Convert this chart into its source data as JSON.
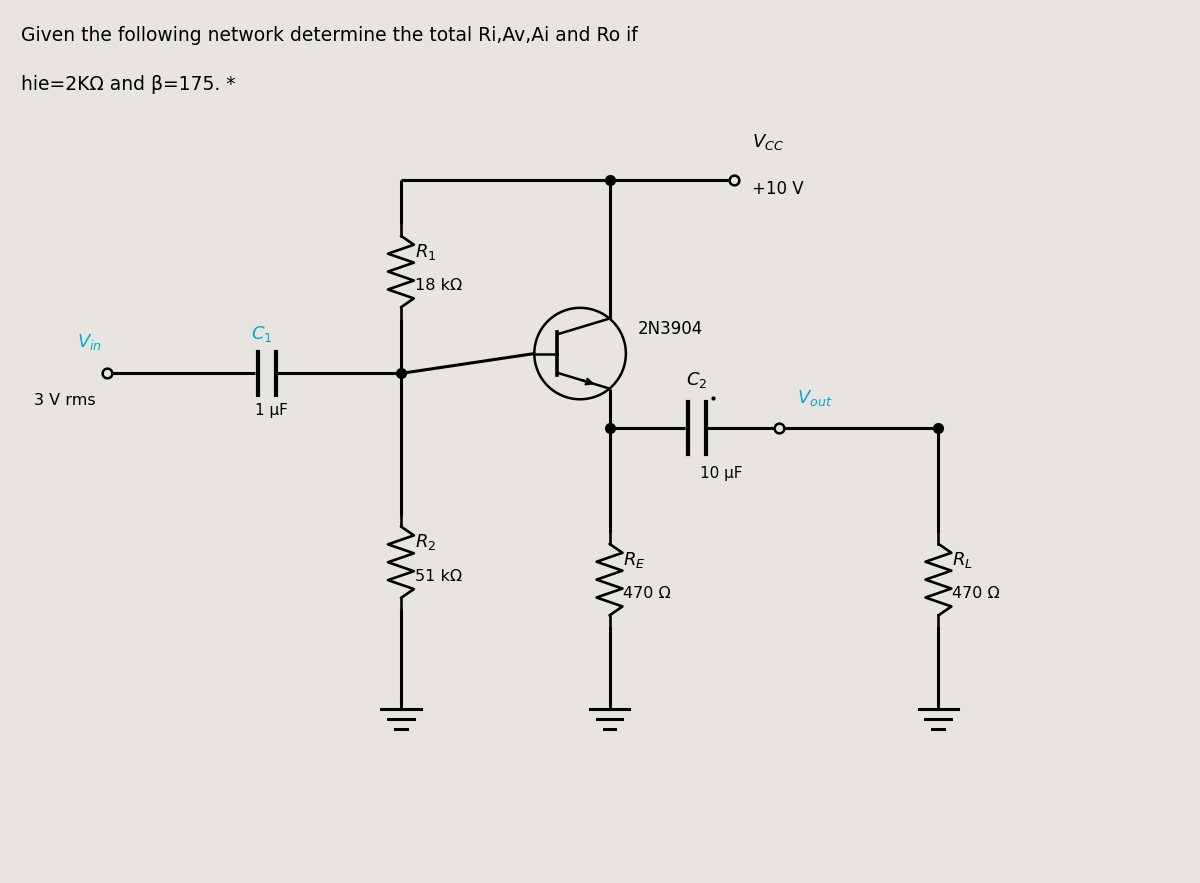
{
  "title_line1": "Given the following network determine the total Ri,Av,Ai and Ro if",
  "title_line2": "hie=2KΩ and β=175. *",
  "bg_color": "#e8e5e0",
  "line_color": "#000000",
  "accent_color": "#00aacc",
  "vcc_label": "V_{CC}",
  "vcc_value": "+10 V",
  "r1_label": "R_1",
  "r1_value": "18 kΩ",
  "r2_label": "R_2",
  "r2_value": "51 kΩ",
  "re_label": "R_E",
  "re_value": "470 Ω",
  "rl_label": "R_L",
  "rl_value": "470 Ω",
  "c1_label": "C_1",
  "c1_value": "1 μF",
  "c2_label": "C_2",
  "c2_value": "10 μF",
  "vin_label": "V_{in}",
  "vin_value": "3 V rms",
  "vout_label": "V_{out}",
  "transistor_label": "2N3904",
  "figw": 12.0,
  "figh": 8.83,
  "dpi": 100
}
